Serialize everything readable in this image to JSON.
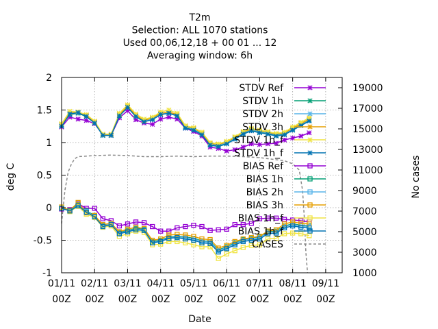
{
  "chart_data": {
    "type": "line",
    "title_lines": [
      "T2m",
      "Selection: ALL    1070 stations",
      "Used  00,06,12,18 + 00 01 ... 12",
      "Averaging window:  6h"
    ],
    "xlabel": "Date",
    "ylabel": "deg C",
    "y2label": "No cases",
    "xlim": [
      0,
      8.5
    ],
    "ylim": [
      -1,
      2
    ],
    "y2lim": [
      1000,
      20000
    ],
    "grid": true,
    "legend_position": "top-right inside",
    "x_ticks": [
      {
        "value": 0,
        "line1": "01/11",
        "line2": "00Z"
      },
      {
        "value": 1,
        "line1": "02/11",
        "line2": "00Z"
      },
      {
        "value": 2,
        "line1": "03/11",
        "line2": "00Z"
      },
      {
        "value": 3,
        "line1": "04/11",
        "line2": "00Z"
      },
      {
        "value": 4,
        "line1": "05/11",
        "line2": "00Z"
      },
      {
        "value": 5,
        "line1": "06/11",
        "line2": "00Z"
      },
      {
        "value": 6,
        "line1": "07/11",
        "line2": "00Z"
      },
      {
        "value": 7,
        "line1": "08/11",
        "line2": "00Z"
      },
      {
        "value": 8,
        "line1": "09/11",
        "line2": "00Z"
      }
    ],
    "y_ticks": [
      {
        "value": -1,
        "label": "-1"
      },
      {
        "value": -0.5,
        "label": "-0.5"
      },
      {
        "value": 0,
        "label": "0"
      },
      {
        "value": 0.5,
        "label": "0.5"
      },
      {
        "value": 1,
        "label": "1"
      },
      {
        "value": 1.5,
        "label": "1.5"
      },
      {
        "value": 2,
        "label": "2"
      }
    ],
    "y2_ticks": [
      {
        "value": 1000,
        "label": "1000"
      },
      {
        "value": 3000,
        "label": "3000"
      },
      {
        "value": 5000,
        "label": "5000"
      },
      {
        "value": 7000,
        "label": "7000"
      },
      {
        "value": 9000,
        "label": "9000"
      },
      {
        "value": 11000,
        "label": "11000"
      },
      {
        "value": 13000,
        "label": "13000"
      },
      {
        "value": 15000,
        "label": "15000"
      },
      {
        "value": 17000,
        "label": "17000"
      },
      {
        "value": 19000,
        "label": "19000"
      }
    ],
    "x": [
      0,
      0.25,
      0.5,
      0.75,
      1,
      1.25,
      1.5,
      1.75,
      2,
      2.25,
      2.5,
      2.75,
      3,
      3.25,
      3.5,
      3.75,
      4,
      4.25,
      4.5,
      4.75,
      5,
      5.25,
      5.5,
      5.75,
      6,
      6.25,
      6.5,
      6.75,
      7,
      7.25,
      7.5
    ],
    "series": [
      {
        "name": "STDV Ref",
        "color": "#9400d3",
        "marker": "star",
        "y": [
          1.24,
          1.39,
          1.36,
          1.34,
          1.29,
          1.12,
          1.11,
          1.38,
          1.49,
          1.35,
          1.3,
          1.28,
          1.36,
          1.39,
          1.36,
          1.22,
          1.17,
          1.1,
          0.93,
          0.91,
          0.87,
          0.89,
          0.93,
          0.98,
          0.97,
          0.98,
          0.99,
          1.04,
          1.07,
          1.1,
          1.15
        ]
      },
      {
        "name": "STDV 1h",
        "color": "#009e73",
        "marker": "star",
        "y": [
          1.26,
          1.43,
          1.45,
          1.4,
          1.3,
          1.11,
          1.11,
          1.41,
          1.54,
          1.4,
          1.32,
          1.36,
          1.43,
          1.45,
          1.41,
          1.23,
          1.2,
          1.13,
          0.97,
          0.95,
          0.99,
          1.06,
          1.14,
          1.19,
          1.16,
          1.14,
          1.11,
          1.13,
          1.2,
          1.27,
          1.34
        ]
      },
      {
        "name": "STDV 2h",
        "color": "#56b4e9",
        "marker": "star",
        "y": [
          1.27,
          1.44,
          1.46,
          1.41,
          1.31,
          1.12,
          1.12,
          1.42,
          1.55,
          1.41,
          1.33,
          1.37,
          1.44,
          1.46,
          1.42,
          1.24,
          1.21,
          1.14,
          0.98,
          0.96,
          1.0,
          1.07,
          1.15,
          1.2,
          1.17,
          1.15,
          1.12,
          1.14,
          1.21,
          1.28,
          1.35
        ]
      },
      {
        "name": "STDV 3h",
        "color": "#e69f00",
        "marker": "star",
        "y": [
          1.28,
          1.45,
          1.47,
          1.42,
          1.32,
          1.12,
          1.12,
          1.43,
          1.56,
          1.42,
          1.34,
          1.38,
          1.45,
          1.47,
          1.43,
          1.25,
          1.22,
          1.15,
          0.99,
          0.97,
          1.01,
          1.08,
          1.16,
          1.21,
          1.18,
          1.16,
          1.13,
          1.15,
          1.22,
          1.29,
          1.36
        ]
      },
      {
        "name": "STDV 1h_f",
        "color": "#f0e442",
        "marker": "star",
        "y": [
          1.29,
          1.48,
          1.47,
          1.43,
          1.33,
          1.13,
          1.13,
          1.45,
          1.58,
          1.44,
          1.36,
          1.39,
          1.47,
          1.5,
          1.45,
          1.26,
          1.23,
          1.16,
          1.0,
          0.98,
          1.02,
          1.09,
          1.17,
          1.22,
          1.19,
          1.17,
          1.14,
          1.16,
          1.24,
          1.31,
          1.38
        ]
      },
      {
        "name": "STDV 1h_f",
        "color": "#0072b2",
        "marker": "star",
        "y": [
          1.25,
          1.44,
          1.46,
          1.4,
          1.3,
          1.11,
          1.11,
          1.41,
          1.54,
          1.4,
          1.32,
          1.35,
          1.43,
          1.45,
          1.41,
          1.22,
          1.19,
          1.12,
          0.96,
          0.94,
          0.98,
          1.05,
          1.13,
          1.18,
          1.15,
          1.13,
          1.1,
          1.12,
          1.19,
          1.26,
          1.33
        ]
      },
      {
        "name": "BIAS Ref",
        "color": "#9400d3",
        "marker": "square",
        "y": [
          -0.02,
          -0.03,
          0.06,
          -0.01,
          -0.01,
          -0.17,
          -0.2,
          -0.28,
          -0.25,
          -0.22,
          -0.23,
          -0.29,
          -0.36,
          -0.36,
          -0.31,
          -0.29,
          -0.27,
          -0.29,
          -0.35,
          -0.34,
          -0.33,
          -0.26,
          -0.26,
          -0.24,
          -0.17,
          -0.16,
          -0.16,
          -0.18,
          -0.19,
          -0.2,
          -0.22
        ]
      },
      {
        "name": "BIAS 1h",
        "color": "#009e73",
        "marker": "square",
        "y": [
          0.0,
          -0.04,
          0.05,
          -0.05,
          -0.12,
          -0.27,
          -0.24,
          -0.38,
          -0.35,
          -0.32,
          -0.33,
          -0.52,
          -0.5,
          -0.45,
          -0.44,
          -0.45,
          -0.47,
          -0.51,
          -0.52,
          -0.65,
          -0.6,
          -0.54,
          -0.49,
          -0.47,
          -0.45,
          -0.37,
          -0.36,
          -0.28,
          -0.25,
          -0.27,
          -0.28
        ]
      },
      {
        "name": "BIAS 2h",
        "color": "#56b4e9",
        "marker": "square",
        "y": [
          0.0,
          -0.05,
          0.04,
          -0.06,
          -0.13,
          -0.28,
          -0.25,
          -0.39,
          -0.36,
          -0.33,
          -0.34,
          -0.53,
          -0.51,
          -0.46,
          -0.45,
          -0.46,
          -0.48,
          -0.52,
          -0.53,
          -0.66,
          -0.61,
          -0.55,
          -0.5,
          -0.48,
          -0.46,
          -0.38,
          -0.37,
          -0.29,
          -0.26,
          -0.28,
          -0.29
        ]
      },
      {
        "name": "BIAS 3h",
        "color": "#e69f00",
        "marker": "square",
        "y": [
          0.01,
          -0.04,
          0.08,
          -0.08,
          -0.12,
          -0.26,
          -0.24,
          -0.37,
          -0.33,
          -0.3,
          -0.32,
          -0.5,
          -0.48,
          -0.42,
          -0.41,
          -0.42,
          -0.44,
          -0.48,
          -0.49,
          -0.62,
          -0.58,
          -0.52,
          -0.48,
          -0.46,
          -0.44,
          -0.36,
          -0.34,
          -0.25,
          -0.22,
          -0.24,
          -0.25
        ]
      },
      {
        "name": "BIAS 1h_f",
        "color": "#f0e442",
        "marker": "square",
        "y": [
          0.0,
          -0.06,
          0.02,
          -0.1,
          -0.15,
          -0.3,
          -0.28,
          -0.44,
          -0.4,
          -0.36,
          -0.38,
          -0.57,
          -0.56,
          -0.52,
          -0.52,
          -0.54,
          -0.57,
          -0.6,
          -0.6,
          -0.78,
          -0.71,
          -0.66,
          -0.61,
          -0.58,
          -0.57,
          -0.48,
          -0.47,
          -0.4,
          -0.39,
          -0.4,
          -0.43
        ]
      },
      {
        "name": "BIAS 1h_f",
        "color": "#0072b2",
        "marker": "square",
        "y": [
          -0.01,
          -0.05,
          0.03,
          -0.07,
          -0.14,
          -0.29,
          -0.26,
          -0.4,
          -0.37,
          -0.34,
          -0.35,
          -0.54,
          -0.52,
          -0.47,
          -0.46,
          -0.48,
          -0.5,
          -0.54,
          -0.55,
          -0.68,
          -0.63,
          -0.57,
          -0.52,
          -0.5,
          -0.48,
          -0.4,
          -0.39,
          -0.31,
          -0.28,
          -0.3,
          -0.31
        ]
      }
    ],
    "cases": {
      "name": "CASES",
      "color": "#888888",
      "axis": "y2",
      "x": [
        0,
        0.1,
        0.2,
        0.3,
        0.4,
        0.5,
        0.75,
        1,
        1.5,
        2,
        2.5,
        3,
        3.5,
        4,
        4.5,
        5,
        5.5,
        6,
        6.25,
        6.5,
        6.75,
        7,
        7.2,
        7.3,
        7.35,
        7.4,
        7.45
      ],
      "y": [
        5800,
        9000,
        10800,
        11600,
        12100,
        12300,
        12350,
        12400,
        12450,
        12400,
        12300,
        12300,
        12350,
        12300,
        12350,
        12350,
        12300,
        12200,
        12100,
        12000,
        11900,
        11600,
        11000,
        9000,
        6500,
        3000,
        1000
      ]
    },
    "legend": [
      {
        "label": "STDV Ref",
        "series": 0
      },
      {
        "label": "STDV 1h",
        "series": 1
      },
      {
        "label": "STDV 2h",
        "series": 2
      },
      {
        "label": "STDV 3h",
        "series": 3
      },
      {
        "label": "STDV 1h_f",
        "series": 4
      },
      {
        "label": "STDV 1h_f",
        "series": 5
      },
      {
        "label": "BIAS Ref",
        "series": 6
      },
      {
        "label": "BIAS 1h",
        "series": 7
      },
      {
        "label": "BIAS 2h",
        "series": 8
      },
      {
        "label": "BIAS 3h",
        "series": 9
      },
      {
        "label": "BIAS 1h_f",
        "series": 10
      },
      {
        "label": "BIAS 1h_f",
        "series": 11
      },
      {
        "label": "CASES",
        "series": -1
      }
    ]
  }
}
